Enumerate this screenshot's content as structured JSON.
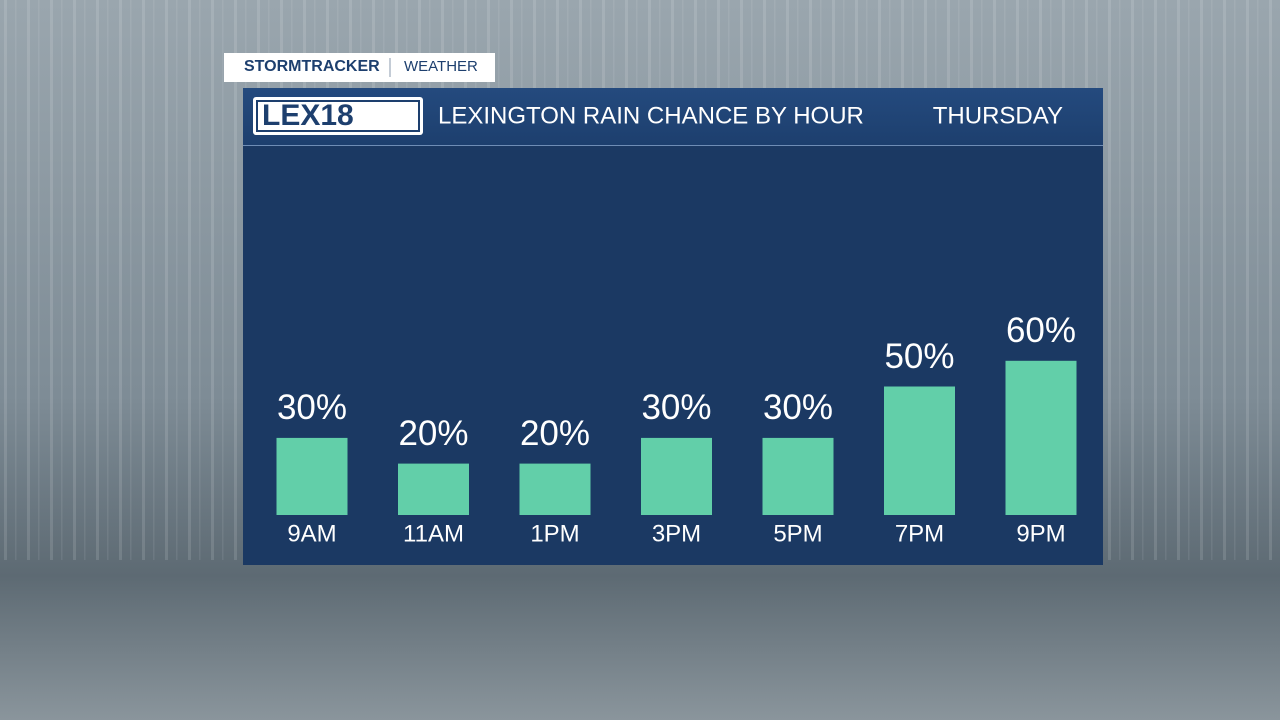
{
  "brand": {
    "name": "StormTracker",
    "section": "WEATHER",
    "logo": "LEX18"
  },
  "chart_data": {
    "type": "bar",
    "title": "LEXINGTON RAIN CHANCE BY HOUR",
    "subtitle": "THURSDAY",
    "categories": [
      "9AM",
      "11AM",
      "1PM",
      "3PM",
      "5PM",
      "7PM",
      "9PM"
    ],
    "values": [
      30,
      20,
      20,
      30,
      30,
      50,
      60
    ],
    "value_labels": [
      "30%",
      "20%",
      "20%",
      "30%",
      "30%",
      "50%",
      "60%"
    ],
    "color": "#62cfa9"
  }
}
